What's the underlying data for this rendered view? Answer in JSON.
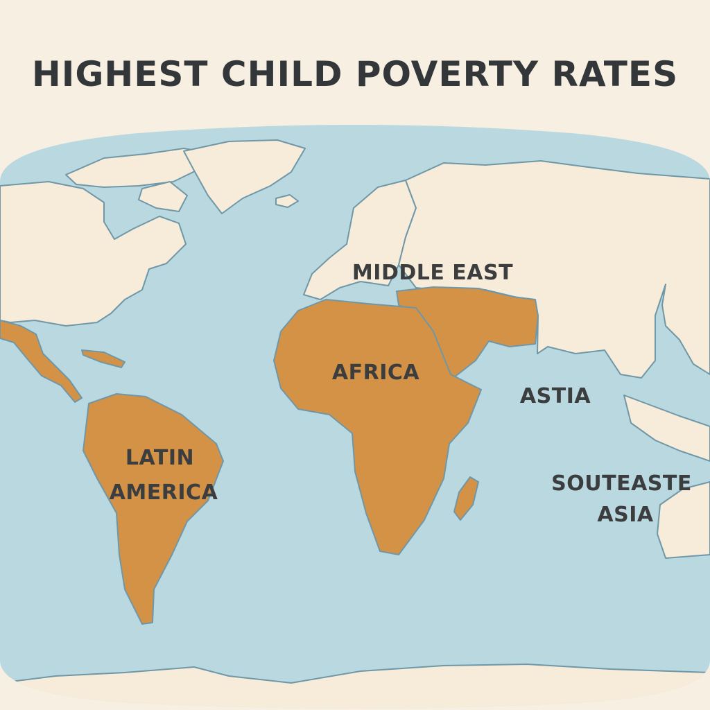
{
  "title": "HIGHEST CHILD POVERTY RATES",
  "colors": {
    "background": "#f7efe2",
    "ocean": "#b9d8df",
    "land": "#f6ecd9",
    "highlight": "#d39245",
    "coast": "#6f97a8",
    "text": "#34373a"
  },
  "regions": [
    {
      "name": "latin-america",
      "highlighted": true,
      "lines": [
        "LATIN",
        "AMERICA"
      ]
    },
    {
      "name": "africa",
      "highlighted": true,
      "lines": [
        "AFRICA"
      ]
    },
    {
      "name": "middle-east",
      "highlighted": true,
      "lines": [
        "MIDDLE EAST"
      ]
    },
    {
      "name": "asia",
      "highlighted": false,
      "lines": [
        "ASTIA"
      ]
    },
    {
      "name": "southeast-asia",
      "highlighted": false,
      "lines": [
        "SOUTEASTE",
        "ASIA"
      ]
    }
  ]
}
